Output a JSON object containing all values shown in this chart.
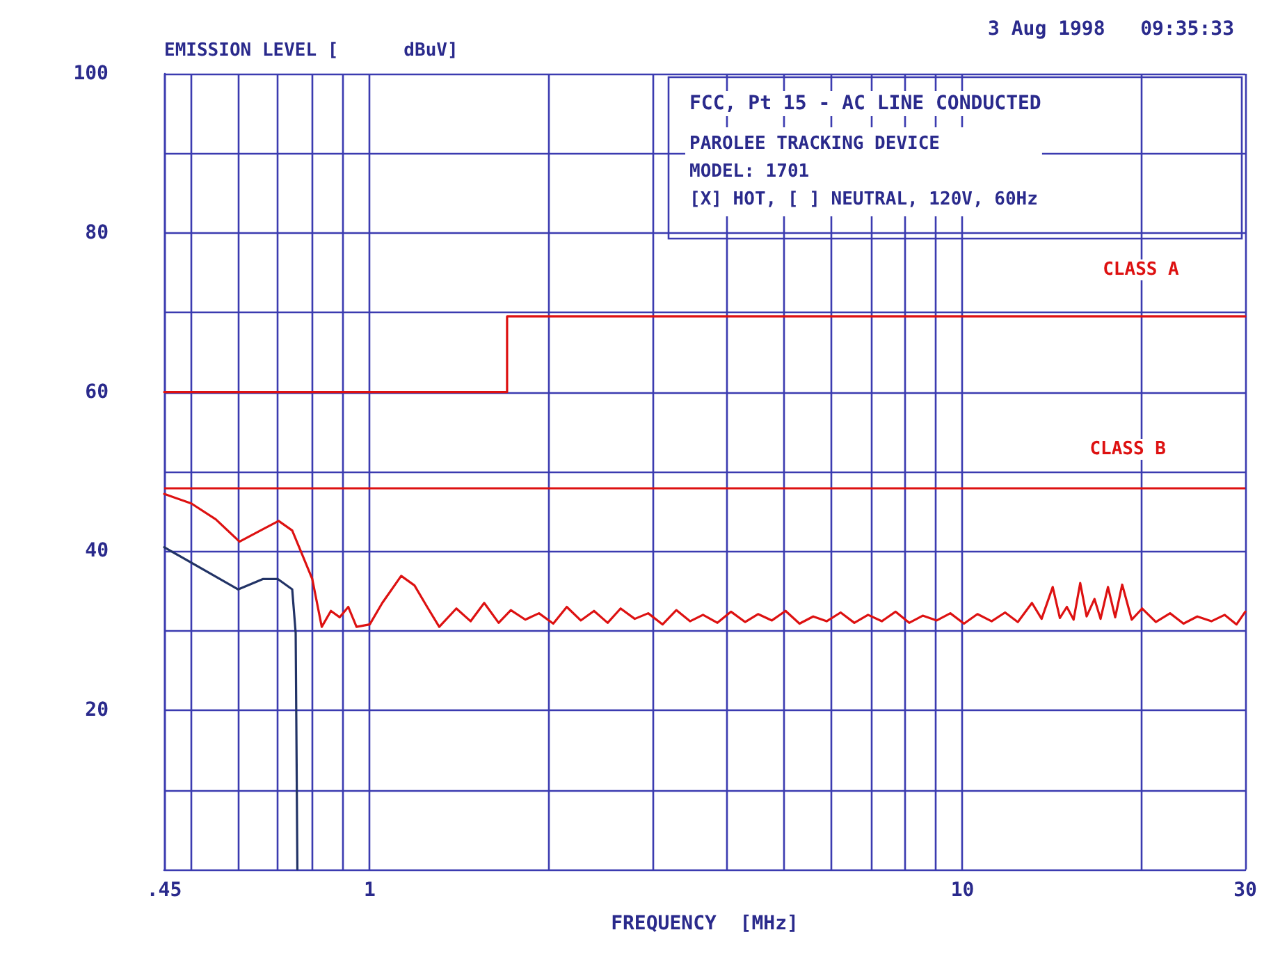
{
  "chart_data": {
    "type": "line",
    "title": "FCC, Pt 15 - AC LINE CONDUCTED",
    "subtitle": "PAROLEE TRACKING DEVICE\nMODEL: 1701\n[X] HOT, [ ] NEUTRAL, 120V, 60Hz",
    "xlabel": "FREQUENCY  [MHz]",
    "ylabel": "EMISSION LEVEL [      dBuV]",
    "annotations": [
      "3 Aug 1998   09:35:33",
      {
        "text": "CLASS A",
        "x": 20,
        "y": 69.5
      }
    ],
    "log": "x",
    "xlim": [
      0.45,
      30
    ],
    "xticks": [
      {
        "value": 0.45,
        "label": ".45"
      },
      {
        "value": 0.5,
        "label": null
      },
      {
        "value": 0.6,
        "label": null
      },
      {
        "value": 0.7,
        "label": null
      },
      {
        "value": 0.8,
        "label": null
      },
      {
        "value": 0.9,
        "label": null
      },
      1,
      {
        "value": 2,
        "label": null
      },
      {
        "value": 3,
        "label": null
      },
      {
        "value": 4,
        "label": null
      },
      {
        "value": 5,
        "label": null
      },
      {
        "value": 6,
        "label": null
      },
      {
        "value": 7,
        "label": null
      },
      {
        "value": 8,
        "label": null
      },
      {
        "value": 9,
        "label": null
      },
      10,
      {
        "value": 20,
        "label": null
      },
      30
    ],
    "ylim": [
      0,
      100
    ],
    "yticks": [
      {
        "value": 10,
        "label": null
      },
      20,
      {
        "value": 30,
        "label": null
      },
      40,
      {
        "value": 50,
        "label": null
      },
      60,
      {
        "value": 70,
        "label": null
      },
      80,
      {
        "value": 90,
        "label": null
      },
      100
    ],
    "grid": true,
    "marker": "none",
    "line_style": "solid",
    "ref_lines": [
      {
        "axis": "y",
        "value": 48,
        "label": "CLASS B",
        "color": "#dd1111"
      }
    ],
    "series": [
      {
        "type": "step",
        "color": "#dd1111",
        "x": [
          0.45,
          1.705,
          30
        ],
        "values": [
          60,
          69.5,
          69.5
        ]
      },
      {
        "color": "#223366",
        "x": [
          0.45,
          0.6,
          0.66,
          0.7,
          0.74,
          0.75,
          0.755
        ],
        "values": [
          40.5,
          35.2,
          36.5,
          36.5,
          35.2,
          29.7,
          0
        ]
      },
      {
        "color": "#dd1111",
        "x": [
          0.45,
          0.5,
          0.55,
          0.603,
          0.65,
          0.702,
          0.74,
          0.77,
          0.8,
          0.83,
          0.86,
          0.89,
          0.92,
          0.95,
          1.0,
          1.05,
          1.13,
          1.19,
          1.25,
          1.31,
          1.4,
          1.48,
          1.56,
          1.65,
          1.73,
          1.83,
          1.93,
          2.04,
          2.15,
          2.27,
          2.39,
          2.52,
          2.65,
          2.8,
          2.95,
          3.12,
          3.29,
          3.47,
          3.65,
          3.86,
          4.07,
          4.3,
          4.52,
          4.77,
          5.03,
          5.31,
          5.6,
          5.9,
          6.23,
          6.57,
          6.93,
          7.31,
          7.71,
          8.13,
          8.57,
          9.05,
          9.54,
          10.06,
          10.6,
          11.2,
          11.8,
          12.4,
          13.1,
          13.6,
          14.2,
          14.6,
          15.0,
          15.4,
          15.8,
          16.2,
          16.7,
          17.1,
          17.6,
          18.1,
          18.6,
          19.3,
          20.1,
          21.2,
          22.4,
          23.6,
          24.9,
          26.3,
          27.7,
          29.0,
          30
        ],
        "values": [
          47.2,
          46,
          44,
          41.2,
          42.5,
          43.8,
          42.6,
          39.5,
          36.5,
          30.5,
          32.5,
          31.7,
          33,
          30.5,
          30.8,
          33.5,
          36.9,
          35.7,
          33,
          30.5,
          32.8,
          31.2,
          33.5,
          31,
          32.6,
          31.4,
          32.2,
          30.9,
          33,
          31.3,
          32.5,
          31,
          32.8,
          31.5,
          32.2,
          30.8,
          32.6,
          31.2,
          32,
          31,
          32.4,
          31.1,
          32.1,
          31.3,
          32.5,
          30.9,
          31.8,
          31.2,
          32.3,
          31,
          32,
          31.2,
          32.4,
          31,
          31.9,
          31.3,
          32.2,
          30.9,
          32.1,
          31.2,
          32.3,
          31.1,
          33.5,
          31.5,
          35.5,
          31.6,
          33,
          31.4,
          36,
          31.8,
          34,
          31.5,
          35.5,
          31.7,
          35.8,
          31.4,
          32.8,
          31.1,
          32.2,
          30.9,
          31.8,
          31.2,
          32,
          30.8,
          32.4
        ]
      }
    ]
  }
}
